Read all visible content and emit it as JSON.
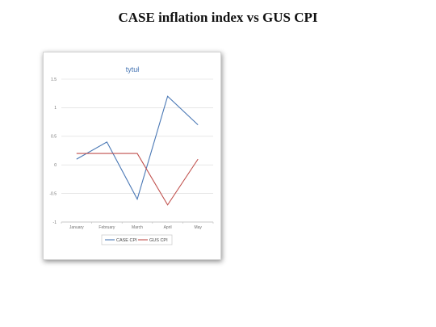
{
  "page": {
    "heading": "CASE inflation index vs GUS CPI"
  },
  "chart_data": {
    "type": "line",
    "title": "tytuł",
    "xlabel": "",
    "ylabel": "",
    "categories": [
      "January",
      "February",
      "March",
      "April",
      "May"
    ],
    "ylim": [
      -1,
      1.5
    ],
    "yticks": [
      -1,
      -0.5,
      0,
      0.5,
      1,
      1.5
    ],
    "ytick_labels": [
      "-1",
      "-0.5",
      "0",
      "0.5",
      "1",
      "1.5"
    ],
    "grid": true,
    "legend_position": "bottom",
    "series": [
      {
        "name": "CASE CPI",
        "color": "#4a78b5",
        "values": [
          0.1,
          0.4,
          -0.6,
          1.2,
          0.7
        ]
      },
      {
        "name": "GUS CPI",
        "color": "#c0504d",
        "values": [
          0.2,
          0.2,
          0.2,
          -0.7,
          0.1
        ]
      }
    ]
  }
}
